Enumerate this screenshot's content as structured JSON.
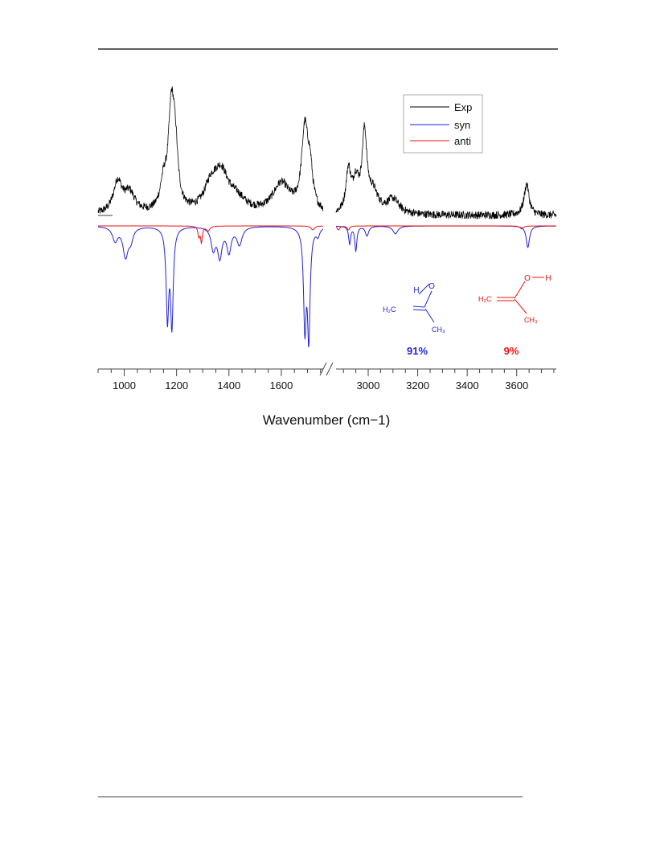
{
  "chart_data": {
    "type": "line",
    "xlabel": "Wavenumber (cm−1)",
    "x_ticks": [
      "1000",
      "1200",
      "1400",
      "1600",
      "3000",
      "3200",
      "3400",
      "3600"
    ],
    "x_segments": [
      [
        900,
        1760
      ],
      [
        2870,
        3760
      ]
    ],
    "axis_break": true,
    "legend": {
      "position": "top-right",
      "entries": [
        "Exp",
        "syn",
        "anti"
      ]
    },
    "colors": {
      "exp": "#000000",
      "syn": "#2222dd",
      "anti": "#ee1111"
    },
    "y_units": "arbitrary",
    "series": [
      {
        "name": "Exp",
        "color": "#000000",
        "orientation": "positive",
        "noise": 0.05,
        "bands": [
          [
            975,
            20,
            0.32
          ],
          [
            1020,
            25,
            0.2
          ],
          [
            1150,
            15,
            0.25
          ],
          [
            1180,
            14,
            1.0
          ],
          [
            1195,
            12,
            0.5
          ],
          [
            1330,
            30,
            0.22
          ],
          [
            1370,
            35,
            0.38
          ],
          [
            1430,
            40,
            0.12
          ],
          [
            1600,
            40,
            0.3
          ],
          [
            1690,
            15,
            0.82
          ],
          [
            1710,
            12,
            0.35
          ],
          [
            2920,
            12,
            0.42
          ],
          [
            2950,
            15,
            0.3
          ],
          [
            2985,
            12,
            0.78
          ],
          [
            3020,
            25,
            0.2
          ],
          [
            3100,
            30,
            0.15
          ],
          [
            3640,
            12,
            0.32
          ]
        ]
      },
      {
        "name": "syn",
        "color": "#2222dd",
        "orientation": "negative",
        "bands": [
          [
            965,
            12,
            0.14
          ],
          [
            1005,
            12,
            0.3
          ],
          [
            1025,
            10,
            0.12
          ],
          [
            1165,
            6,
            0.92
          ],
          [
            1182,
            6,
            0.98
          ],
          [
            1340,
            10,
            0.22
          ],
          [
            1365,
            10,
            0.3
          ],
          [
            1400,
            10,
            0.25
          ],
          [
            1440,
            12,
            0.18
          ],
          [
            1690,
            6,
            1.0
          ],
          [
            1705,
            6,
            1.1
          ],
          [
            1740,
            8,
            0.08
          ],
          [
            2925,
            5,
            0.18
          ],
          [
            2950,
            5,
            0.25
          ],
          [
            2995,
            8,
            0.1
          ],
          [
            3110,
            12,
            0.08
          ],
          [
            3645,
            8,
            0.22
          ]
        ]
      },
      {
        "name": "anti",
        "color": "#ee1111",
        "orientation": "negative",
        "bands": [
          [
            1285,
            4,
            0.1
          ],
          [
            1295,
            4,
            0.16
          ],
          [
            1320,
            8,
            0.05
          ],
          [
            1720,
            8,
            0.04
          ],
          [
            2880,
            6,
            0.04
          ],
          [
            2920,
            6,
            0.04
          ],
          [
            3620,
            8,
            0.03
          ]
        ]
      }
    ],
    "annotations": [
      {
        "text": "91%",
        "color": "#2222dd"
      },
      {
        "text": "9%",
        "color": "#ee1111"
      }
    ]
  },
  "structures": {
    "syn": {
      "h": "H",
      "o": "O",
      "ch2": "H₂C",
      "ch3": "CH₃"
    },
    "anti": {
      "h": "H",
      "o": "O",
      "ch2": "H₂C",
      "ch3": "CH₃"
    }
  }
}
